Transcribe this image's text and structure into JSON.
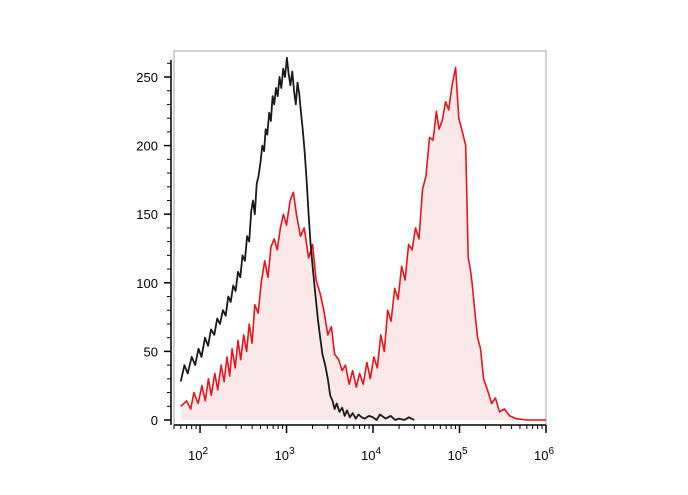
{
  "chart_data": {
    "type": "area",
    "x_scale": "log",
    "xlim": [
      50,
      1000000
    ],
    "ylim": [
      0,
      265
    ],
    "y_ticks": [
      0,
      50,
      100,
      150,
      200,
      250
    ],
    "y_tick_labels": [
      "0",
      "50",
      "100",
      "150",
      "200",
      "250"
    ],
    "x_ticks": [
      {
        "base": "10",
        "exp": "2",
        "value": 100
      },
      {
        "base": "10",
        "exp": "3",
        "value": 1000
      },
      {
        "base": "10",
        "exp": "4",
        "value": 10000
      },
      {
        "base": "10",
        "exp": "5",
        "value": 100000
      },
      {
        "base": "10",
        "exp": "6",
        "value": 1000000
      }
    ],
    "grid": false,
    "legend": "none",
    "series": [
      {
        "style": "filled",
        "color": "#e8141b",
        "fill": "#fbe9ea",
        "points": [
          [
            60,
            10
          ],
          [
            70,
            14
          ],
          [
            78,
            8
          ],
          [
            85,
            20
          ],
          [
            95,
            12
          ],
          [
            105,
            25
          ],
          [
            115,
            14
          ],
          [
            125,
            30
          ],
          [
            135,
            18
          ],
          [
            148,
            34
          ],
          [
            160,
            22
          ],
          [
            175,
            40
          ],
          [
            190,
            28
          ],
          [
            205,
            46
          ],
          [
            220,
            32
          ],
          [
            235,
            52
          ],
          [
            255,
            38
          ],
          [
            275,
            58
          ],
          [
            295,
            44
          ],
          [
            320,
            62
          ],
          [
            345,
            50
          ],
          [
            370,
            70
          ],
          [
            400,
            56
          ],
          [
            430,
            84
          ],
          [
            470,
            78
          ],
          [
            510,
            100
          ],
          [
            560,
            116
          ],
          [
            610,
            104
          ],
          [
            660,
            126
          ],
          [
            720,
            132
          ],
          [
            780,
            124
          ],
          [
            850,
            140
          ],
          [
            920,
            150
          ],
          [
            1000,
            142
          ],
          [
            1100,
            160
          ],
          [
            1200,
            166
          ],
          [
            1300,
            150
          ],
          [
            1450,
            134
          ],
          [
            1600,
            140
          ],
          [
            1800,
            118
          ],
          [
            2000,
            128
          ],
          [
            2200,
            102
          ],
          [
            2450,
            92
          ],
          [
            2700,
            80
          ],
          [
            3000,
            62
          ],
          [
            3300,
            68
          ],
          [
            3600,
            48
          ],
          [
            4000,
            44
          ],
          [
            4400,
            36
          ],
          [
            4800,
            40
          ],
          [
            5300,
            26
          ],
          [
            5800,
            36
          ],
          [
            6400,
            24
          ],
          [
            7000,
            34
          ],
          [
            7700,
            26
          ],
          [
            8500,
            42
          ],
          [
            9300,
            30
          ],
          [
            10200,
            46
          ],
          [
            11200,
            38
          ],
          [
            12300,
            62
          ],
          [
            13500,
            50
          ],
          [
            14800,
            80
          ],
          [
            16200,
            72
          ],
          [
            17800,
            96
          ],
          [
            19500,
            88
          ],
          [
            21400,
            112
          ],
          [
            23500,
            102
          ],
          [
            25800,
            128
          ],
          [
            28300,
            124
          ],
          [
            31000,
            140
          ],
          [
            34000,
            132
          ],
          [
            37300,
            168
          ],
          [
            41000,
            178
          ],
          [
            45000,
            206
          ],
          [
            49500,
            204
          ],
          [
            54000,
            225
          ],
          [
            58000,
            212
          ],
          [
            63000,
            218
          ],
          [
            69000,
            232
          ],
          [
            75000,
            226
          ],
          [
            82000,
            244
          ],
          [
            90000,
            257
          ],
          [
            98000,
            220
          ],
          [
            108000,
            210
          ],
          [
            118000,
            200
          ],
          [
            126000,
            118
          ],
          [
            132000,
            112
          ],
          [
            140000,
            100
          ],
          [
            150000,
            80
          ],
          [
            162000,
            60
          ],
          [
            175000,
            52
          ],
          [
            190000,
            30
          ],
          [
            210000,
            22
          ],
          [
            235000,
            12
          ],
          [
            260000,
            16
          ],
          [
            290000,
            6
          ],
          [
            330000,
            8
          ],
          [
            380000,
            3
          ],
          [
            450000,
            1
          ],
          [
            600000,
            0
          ],
          [
            1000000,
            0
          ]
        ]
      },
      {
        "style": "line",
        "color": "#1a1a1a",
        "points": [
          [
            60,
            28
          ],
          [
            66,
            40
          ],
          [
            72,
            34
          ],
          [
            80,
            46
          ],
          [
            88,
            40
          ],
          [
            96,
            52
          ],
          [
            104,
            46
          ],
          [
            114,
            60
          ],
          [
            124,
            54
          ],
          [
            134,
            66
          ],
          [
            146,
            62
          ],
          [
            158,
            74
          ],
          [
            170,
            70
          ],
          [
            184,
            80
          ],
          [
            198,
            76
          ],
          [
            212,
            90
          ],
          [
            226,
            86
          ],
          [
            242,
            98
          ],
          [
            258,
            94
          ],
          [
            275,
            108
          ],
          [
            292,
            104
          ],
          [
            310,
            120
          ],
          [
            330,
            116
          ],
          [
            350,
            134
          ],
          [
            370,
            130
          ],
          [
            390,
            152
          ],
          [
            410,
            160
          ],
          [
            430,
            150
          ],
          [
            452,
            172
          ],
          [
            475,
            178
          ],
          [
            500,
            188
          ],
          [
            525,
            200
          ],
          [
            550,
            196
          ],
          [
            575,
            212
          ],
          [
            600,
            208
          ],
          [
            630,
            224
          ],
          [
            660,
            218
          ],
          [
            690,
            236
          ],
          [
            720,
            230
          ],
          [
            755,
            242
          ],
          [
            790,
            236
          ],
          [
            830,
            250
          ],
          [
            870,
            242
          ],
          [
            915,
            256
          ],
          [
            960,
            250
          ],
          [
            1010,
            264
          ],
          [
            1060,
            252
          ],
          [
            1110,
            244
          ],
          [
            1165,
            254
          ],
          [
            1220,
            240
          ],
          [
            1280,
            230
          ],
          [
            1340,
            246
          ],
          [
            1400,
            238
          ],
          [
            1470,
            224
          ],
          [
            1540,
            212
          ],
          [
            1620,
            196
          ],
          [
            1700,
            176
          ],
          [
            1800,
            150
          ],
          [
            1900,
            128
          ],
          [
            2000,
            112
          ],
          [
            2150,
            92
          ],
          [
            2300,
            74
          ],
          [
            2450,
            60
          ],
          [
            2600,
            48
          ],
          [
            2800,
            40
          ],
          [
            3000,
            30
          ],
          [
            3200,
            18
          ],
          [
            3400,
            14
          ],
          [
            3600,
            8
          ],
          [
            3800,
            12
          ],
          [
            4100,
            6
          ],
          [
            4400,
            9
          ],
          [
            4700,
            3
          ],
          [
            5000,
            7
          ],
          [
            5400,
            2
          ],
          [
            5800,
            5
          ],
          [
            6300,
            1
          ],
          [
            6800,
            4
          ],
          [
            7400,
            2
          ],
          [
            8000,
            1
          ],
          [
            9000,
            3
          ],
          [
            10000,
            2
          ],
          [
            11000,
            0
          ],
          [
            12000,
            4
          ],
          [
            14000,
            1
          ],
          [
            16000,
            3
          ],
          [
            18000,
            0
          ],
          [
            20000,
            1
          ],
          [
            23000,
            0
          ],
          [
            26000,
            2
          ],
          [
            30000,
            0
          ]
        ]
      }
    ]
  }
}
